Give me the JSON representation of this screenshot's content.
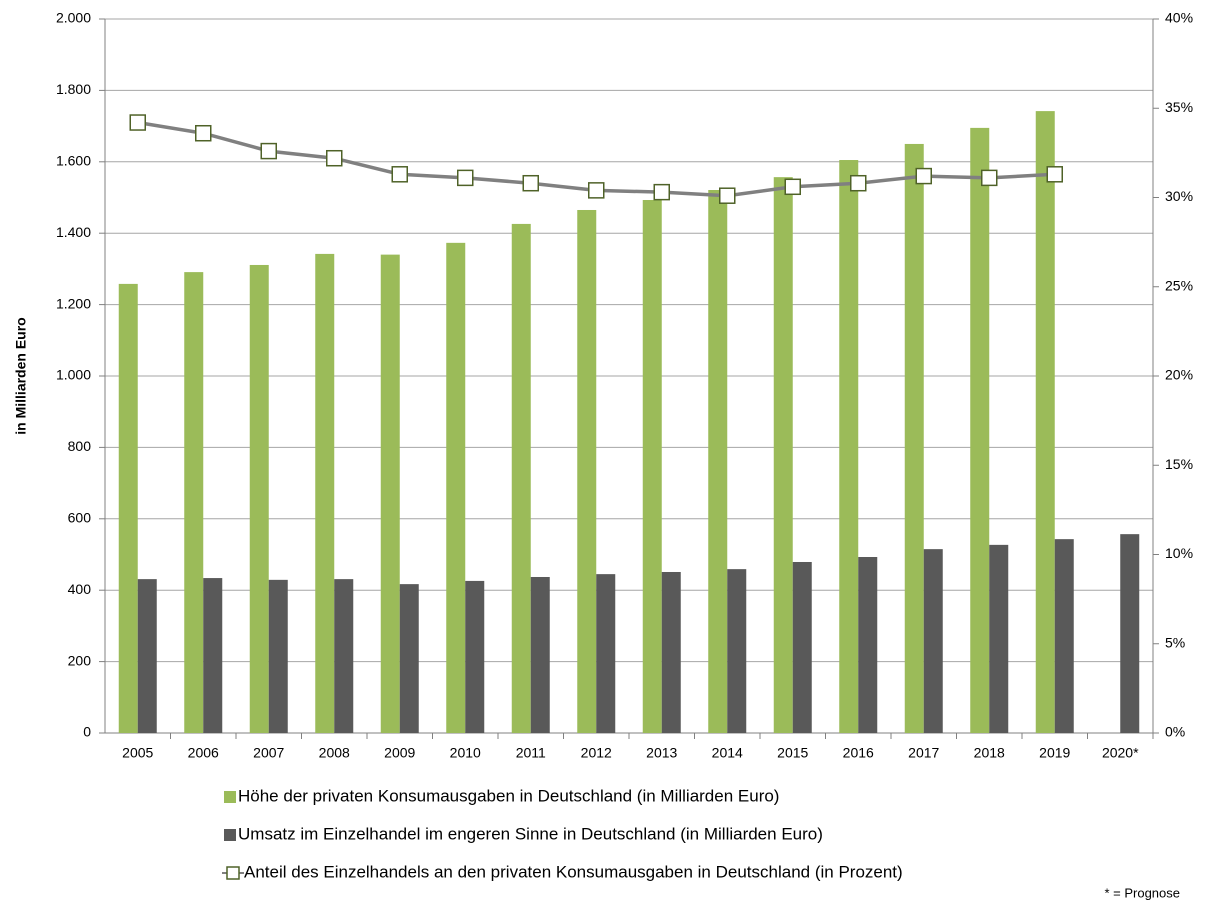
{
  "chart_data": {
    "type": "bar",
    "y_label": "in Milliarden Euro",
    "annotation": "* = Prognose",
    "categories": [
      "2005",
      "2006",
      "2007",
      "2008",
      "2009",
      "2010",
      "2011",
      "2012",
      "2013",
      "2014",
      "2015",
      "2016",
      "2017",
      "2018",
      "2019",
      "2020*"
    ],
    "series": [
      {
        "name": "Höhe der privaten Konsumausgaben in Deutschland (in Milliarden Euro)",
        "color": "#9bbb59",
        "type": "bar",
        "values": [
          1258,
          1291,
          1311,
          1342,
          1340,
          1373,
          1426,
          1465,
          1493,
          1521,
          1557,
          1605,
          1650,
          1695,
          1742,
          null
        ]
      },
      {
        "name": "Umsatz im Einzelhandel im engeren Sinne in Deutschland (in Milliarden Euro)",
        "color": "#595959",
        "type": "bar",
        "values": [
          431,
          434,
          429,
          431,
          417,
          426,
          437,
          445,
          451,
          459,
          479,
          493,
          515,
          527,
          543,
          557
        ]
      },
      {
        "name": "Anteil des Einzelhandels an den privaten Konsumausgaben in Deutschland (in Prozent)",
        "color": "#808080",
        "marker_color": "#4f6228",
        "type": "line",
        "axis": "y2",
        "values": [
          34.2,
          33.6,
          32.6,
          32.2,
          31.3,
          31.1,
          30.8,
          30.4,
          30.3,
          30.1,
          30.6,
          30.8,
          31.2,
          31.1,
          31.3,
          null
        ]
      }
    ],
    "ylim": [
      0,
      2000
    ],
    "yticks": [
      0,
      200,
      400,
      600,
      800,
      {
        "value": 1000,
        "label": "1.000"
      },
      {
        "value": 1200,
        "label": "1.200"
      },
      {
        "value": 1400,
        "label": "1.400"
      },
      {
        "value": 1600,
        "label": "1.600"
      },
      {
        "value": 1800,
        "label": "1.800"
      },
      {
        "value": 2000,
        "label": "2.000"
      }
    ],
    "y2lim": [
      0,
      40
    ],
    "y2ticks": [
      {
        "value": 0,
        "label": "0%"
      },
      {
        "value": 5,
        "label": "5%"
      },
      {
        "value": 10,
        "label": "10%"
      },
      {
        "value": 15,
        "label": "15%"
      },
      {
        "value": 20,
        "label": "20%"
      },
      {
        "value": 25,
        "label": "25%"
      },
      {
        "value": 30,
        "label": "30%"
      },
      {
        "value": 35,
        "label": "35%"
      },
      {
        "value": 40,
        "label": "40%"
      }
    ],
    "grid": true
  }
}
